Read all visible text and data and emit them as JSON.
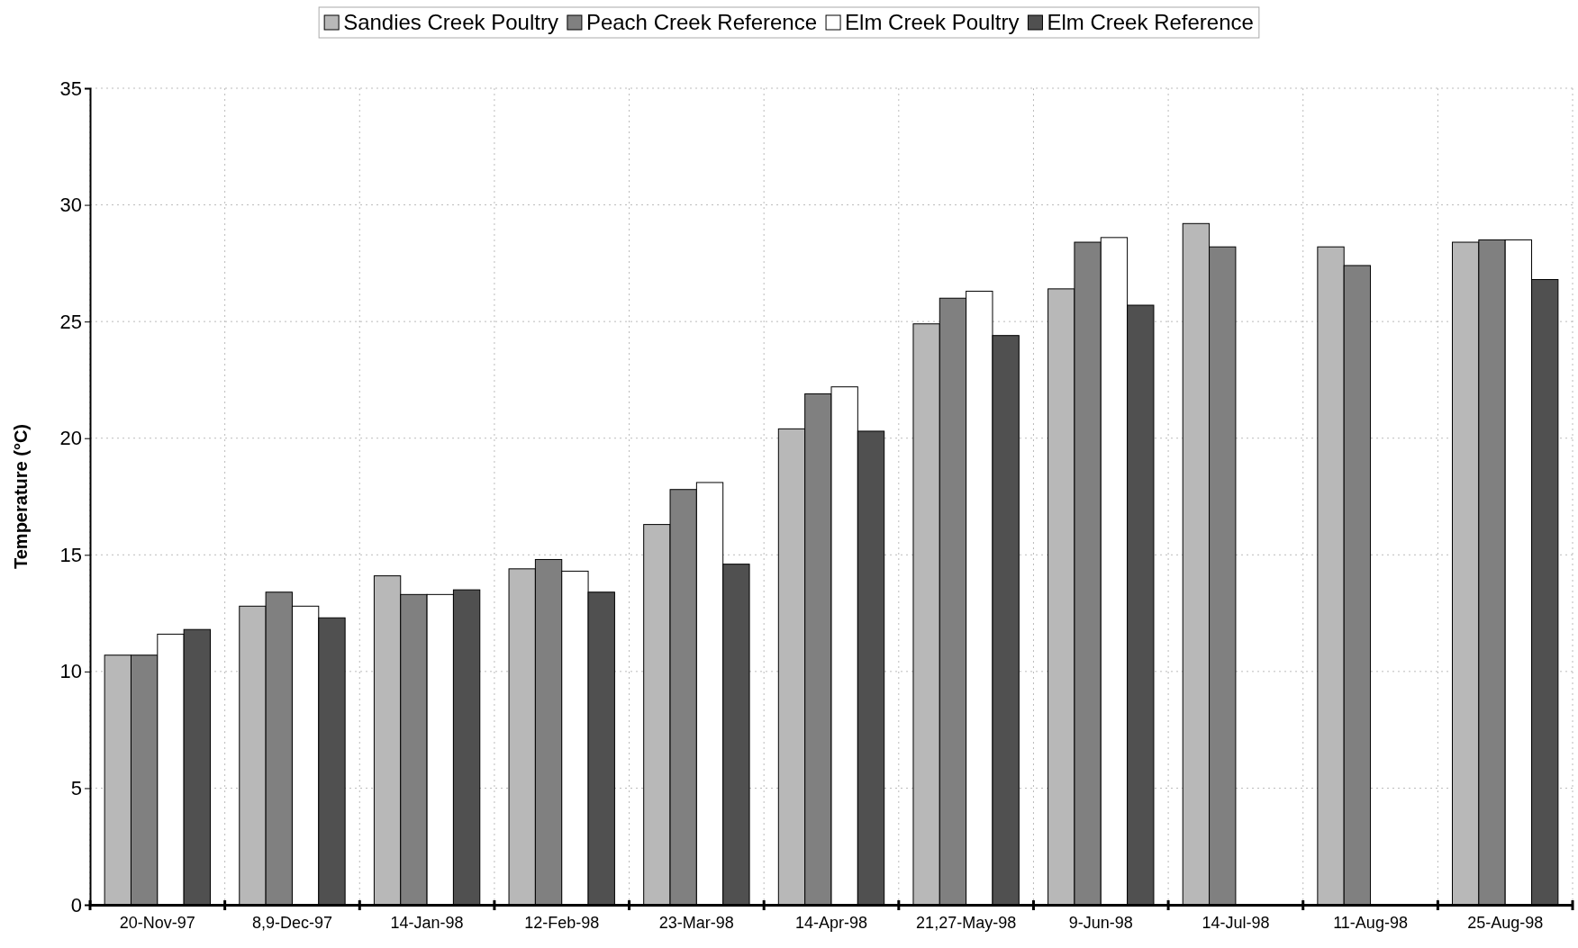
{
  "chart_data": {
    "type": "bar",
    "ylabel": "Temperature (°C)",
    "categories": [
      "20-Nov-97",
      "8,9-Dec-97",
      "14-Jan-98",
      "12-Feb-98",
      "23-Mar-98",
      "14-Apr-98",
      "21,27-May-98",
      "9-Jun-98",
      "14-Jul-98",
      "11-Aug-98",
      "25-Aug-98"
    ],
    "series": [
      {
        "name": "Sandies Creek Poultry",
        "color": "#b8b8b8",
        "values": [
          10.7,
          12.8,
          14.1,
          14.4,
          16.3,
          20.4,
          24.9,
          26.4,
          29.2,
          28.2,
          28.4
        ]
      },
      {
        "name": "Peach Creek Reference",
        "color": "#808080",
        "values": [
          10.7,
          13.4,
          13.3,
          14.8,
          17.8,
          21.9,
          26.0,
          28.4,
          28.2,
          27.4,
          28.5
        ]
      },
      {
        "name": "Elm Creek Poultry",
        "color": "#ffffff",
        "values": [
          11.6,
          12.8,
          13.3,
          14.3,
          18.1,
          22.2,
          26.3,
          28.6,
          null,
          null,
          28.5
        ]
      },
      {
        "name": "Elm Creek Reference",
        "color": "#505050",
        "values": [
          11.8,
          12.3,
          13.5,
          13.4,
          14.6,
          20.3,
          24.4,
          25.7,
          null,
          null,
          26.8
        ]
      }
    ],
    "ylim": [
      0,
      35
    ],
    "yticks": [
      0,
      5,
      10,
      15,
      20,
      25,
      30,
      35
    ],
    "grid": true,
    "legend": "top"
  }
}
